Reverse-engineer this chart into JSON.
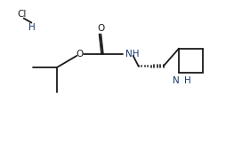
{
  "bg_color": "#ffffff",
  "line_color": "#1a1a1a",
  "text_color": "#1a1a1a",
  "nh_color": "#1a3a6b",
  "figsize": [
    2.63,
    1.59
  ],
  "dpi": 100,
  "xlim": [
    0,
    10.5
  ],
  "ylim": [
    0,
    6.4
  ]
}
